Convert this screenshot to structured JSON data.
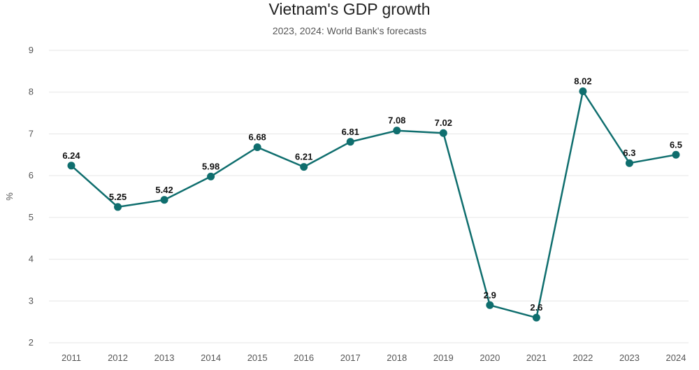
{
  "chart_data": {
    "type": "line",
    "title": "Vietnam's GDP growth",
    "subtitle": "2023, 2024: World Bank's forecasts",
    "ylabel": "%",
    "xlabel": "",
    "categories": [
      "2011",
      "2012",
      "2013",
      "2014",
      "2015",
      "2016",
      "2017",
      "2018",
      "2019",
      "2020",
      "2021",
      "2022",
      "2023",
      "2024"
    ],
    "series": [
      {
        "values": [
          6.24,
          5.25,
          5.42,
          5.98,
          6.68,
          6.21,
          6.81,
          7.08,
          7.02,
          2.9,
          2.6,
          8.02,
          6.3,
          6.5
        ]
      }
    ],
    "data_labels": [
      "6.24",
      "5.25",
      "5.42",
      "5.98",
      "6.68",
      "6.21",
      "6.81",
      "7.08",
      "7.02",
      "2.9",
      "2.6",
      "8.02",
      "6.3",
      "6.5"
    ],
    "ylim": [
      2,
      9
    ],
    "yticks": [
      "2",
      "3",
      "4",
      "5",
      "6",
      "7",
      "8",
      "9"
    ],
    "grid": true,
    "line_color": "#0f6e6e"
  }
}
